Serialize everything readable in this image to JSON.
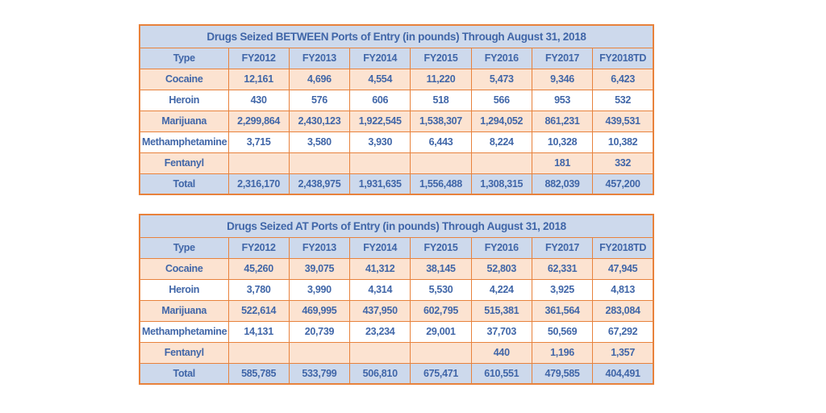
{
  "colors": {
    "border_orange": "#E8823C",
    "header_blue_bg": "#CDD9EC",
    "peach_row_bg": "#FCE3D1",
    "white_row_bg": "#FFFFFF",
    "text_blue": "#4066A8",
    "page_bg": "#FFFFFF"
  },
  "chart_data": [
    {
      "type": "table",
      "title": "Drugs Seized BETWEEN Ports of Entry (in pounds) Through August 31, 2018",
      "columns": [
        "Type",
        "FY2012",
        "FY2013",
        "FY2014",
        "FY2015",
        "FY2016",
        "FY2017",
        "FY2018TD"
      ],
      "rows": [
        {
          "label": "Cocaine",
          "values": [
            "12,161",
            "4,696",
            "4,554",
            "11,220",
            "5,473",
            "9,346",
            "6,423"
          ]
        },
        {
          "label": "Heroin",
          "values": [
            "430",
            "576",
            "606",
            "518",
            "566",
            "953",
            "532"
          ]
        },
        {
          "label": "Marijuana",
          "values": [
            "2,299,864",
            "2,430,123",
            "1,922,545",
            "1,538,307",
            "1,294,052",
            "861,231",
            "439,531"
          ]
        },
        {
          "label": "Methamphetamine",
          "values": [
            "3,715",
            "3,580",
            "3,930",
            "6,443",
            "8,224",
            "10,328",
            "10,382"
          ]
        },
        {
          "label": "Fentanyl",
          "values": [
            "",
            "",
            "",
            "",
            "",
            "181",
            "332"
          ]
        },
        {
          "label": "Total",
          "values": [
            "2,316,170",
            "2,438,975",
            "1,931,635",
            "1,556,488",
            "1,308,315",
            "882,039",
            "457,200"
          ]
        }
      ]
    },
    {
      "type": "table",
      "title": "Drugs Seized AT Ports of Entry (in pounds) Through August 31, 2018",
      "columns": [
        "Type",
        "FY2012",
        "FY2013",
        "FY2014",
        "FY2015",
        "FY2016",
        "FY2017",
        "FY2018TD"
      ],
      "rows": [
        {
          "label": "Cocaine",
          "values": [
            "45,260",
            "39,075",
            "41,312",
            "38,145",
            "52,803",
            "62,331",
            "47,945"
          ]
        },
        {
          "label": "Heroin",
          "values": [
            "3,780",
            "3,990",
            "4,314",
            "5,530",
            "4,224",
            "3,925",
            "4,813"
          ]
        },
        {
          "label": "Marijuana",
          "values": [
            "522,614",
            "469,995",
            "437,950",
            "602,795",
            "515,381",
            "361,564",
            "283,084"
          ]
        },
        {
          "label": "Methamphetamine",
          "values": [
            "14,131",
            "20,739",
            "23,234",
            "29,001",
            "37,703",
            "50,569",
            "67,292"
          ]
        },
        {
          "label": "Fentanyl",
          "values": [
            "",
            "",
            "",
            "",
            "440",
            "1,196",
            "1,357"
          ]
        },
        {
          "label": "Total",
          "values": [
            "585,785",
            "533,799",
            "506,810",
            "675,471",
            "610,551",
            "479,585",
            "404,491"
          ]
        }
      ]
    }
  ]
}
